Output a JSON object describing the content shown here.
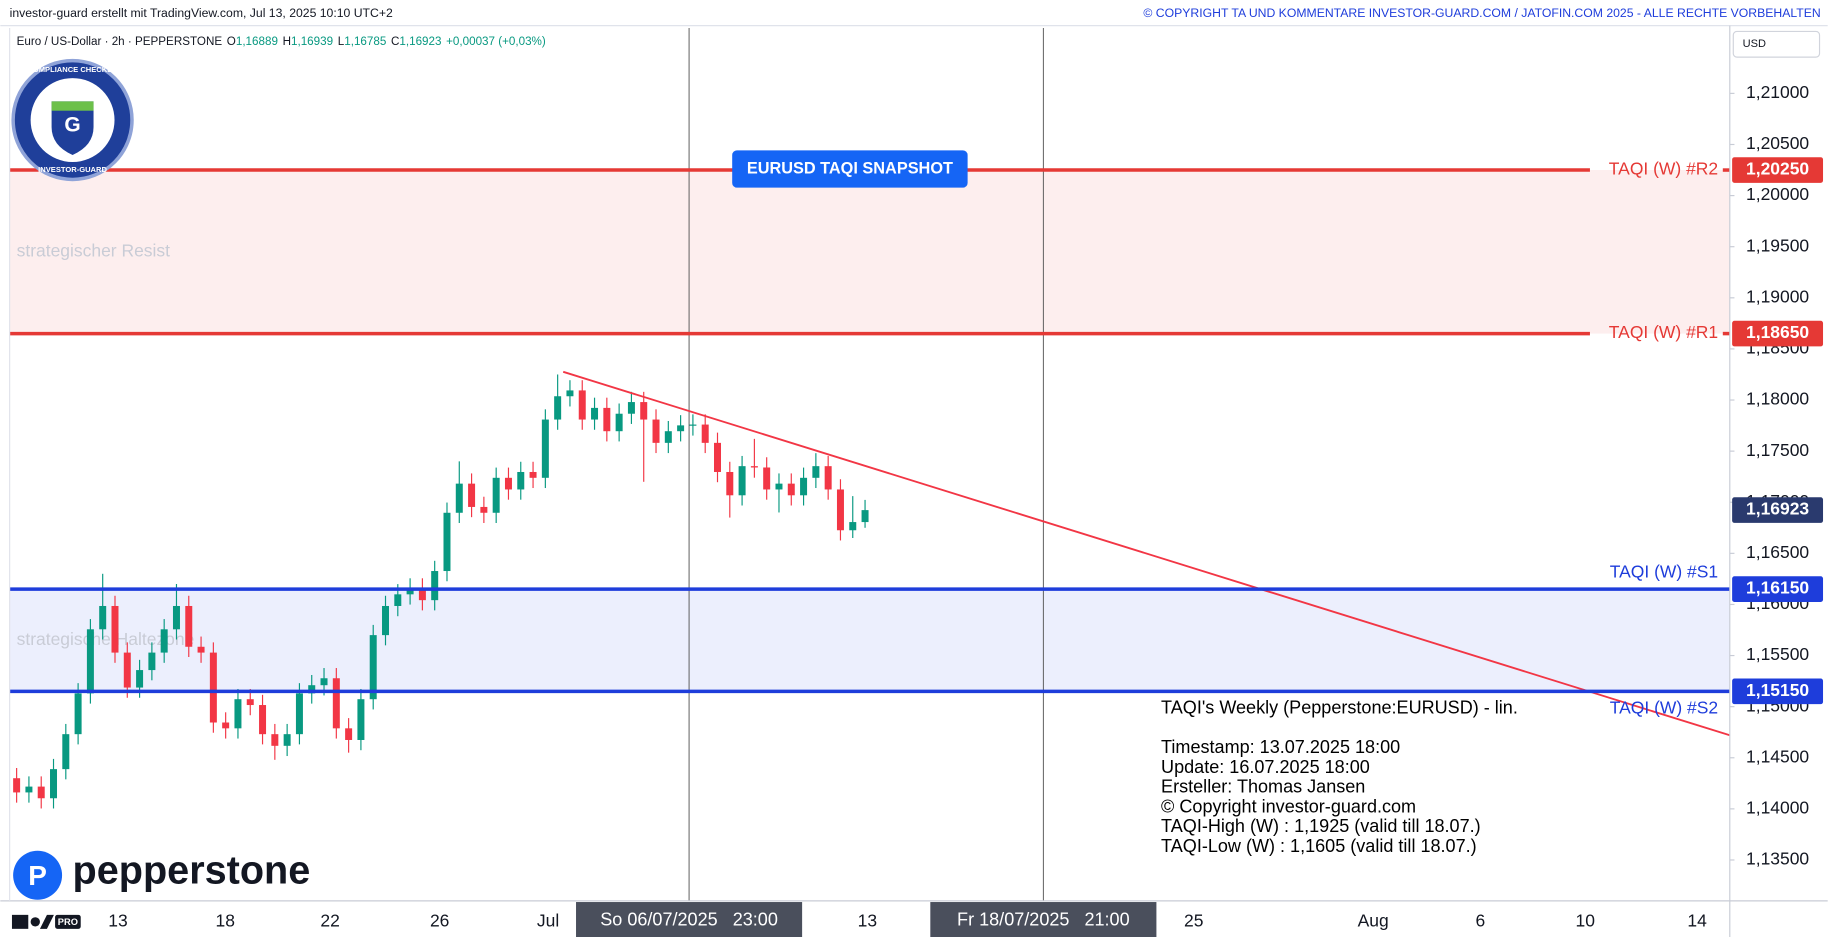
{
  "chart_data": {
    "type": "candlestick",
    "header_left": "investor-guard erstellt mit TradingView.com, Jul 13, 2025 10:10 UTC+2",
    "header_right": "© COPYRIGHT TA UND KOMMENTARE INVESTOR-GUARD.COM / JATOFIN.COM 2025 - ALLE RECHTE VORBEHALTEN",
    "symbol": "Euro / US-Dollar · 2h · PEPPERSTONE",
    "ohlc_legend": [
      {
        "key": "O",
        "value": "1,16889"
      },
      {
        "key": "H",
        "value": "1,16939"
      },
      {
        "key": "L",
        "value": "1,16785"
      },
      {
        "key": "C",
        "value": "1,16923"
      }
    ],
    "change": "+0,00037 (+0,03%)",
    "currency": "USD",
    "badge": {
      "top": "COMPLIANCE CHECKED",
      "bottom": "INVESTOR-GUARD"
    },
    "broker_logo": "pepperstone",
    "snapshot_button": "EURUSD TAQI SNAPSHOT",
    "ylim": [
      1.131,
      1.2164
    ],
    "yticks": [
      {
        "value": 1.135,
        "label": "1,13500"
      },
      {
        "value": 1.14,
        "label": "1,14000"
      },
      {
        "value": 1.145,
        "label": "1,14500"
      },
      {
        "value": 1.15,
        "label": "1,15000"
      },
      {
        "value": 1.155,
        "label": "1,15500"
      },
      {
        "value": 1.16,
        "label": "1,16000"
      },
      {
        "value": 1.165,
        "label": "1,16500"
      },
      {
        "value": 1.17,
        "label": "1,17000"
      },
      {
        "value": 1.175,
        "label": "1,17500"
      },
      {
        "value": 1.18,
        "label": "1,18000"
      },
      {
        "value": 1.185,
        "label": "1,18500"
      },
      {
        "value": 1.19,
        "label": "1,19000"
      },
      {
        "value": 1.195,
        "label": "1,19500"
      },
      {
        "value": 1.2,
        "label": "1,20000"
      },
      {
        "value": 1.205,
        "label": "1,20500"
      },
      {
        "value": 1.21,
        "label": "1,21000"
      }
    ],
    "x_axis_labels": [
      "13",
      "18",
      "22",
      "26",
      "Jul",
      "13",
      "25",
      "Aug",
      "6",
      "10",
      "14"
    ],
    "crosshair_labels": [
      "So 06/07/2025   23:00",
      "Fr 18/07/2025   21:00"
    ],
    "up_color": "#089981",
    "down_color": "#f23645",
    "open": [
      1.143,
      1.14161,
      1.14218,
      1.14104,
      1.14389,
      1.14731,
      1.1513,
      1.15757,
      1.15985,
      1.15529,
      1.15187,
      1.15358,
      1.15529,
      1.15757,
      1.15985,
      1.15586,
      1.15529,
      1.14845,
      1.14788,
      1.15073,
      1.15016,
      1.14731,
      1.14617,
      1.14731,
      1.1513,
      1.1521,
      1.15278,
      1.14788,
      1.14674,
      1.15073,
      1.157,
      1.15985,
      1.16099,
      1.16156,
      1.16042,
      1.16327,
      1.16897,
      1.17182,
      1.16954,
      1.16897,
      1.17239,
      1.17125,
      1.17296,
      1.17239,
      1.17809,
      1.18037,
      1.18094,
      1.17809,
      1.17923,
      1.17695,
      1.17866,
      1.1798,
      1.17809,
      1.17581,
      1.17695,
      1.17752,
      1.1776,
      1.17581,
      1.17296,
      1.17068,
      1.17353,
      1.1734,
      1.17125,
      1.17182,
      1.17068,
      1.17239,
      1.17353,
      1.17125,
      1.16726,
      1.16806
    ],
    "high": [
      1.144,
      1.14318,
      1.14318,
      1.14489,
      1.14831,
      1.1523,
      1.15857,
      1.163,
      1.16085,
      1.15629,
      1.15458,
      1.15629,
      1.15857,
      1.162,
      1.16085,
      1.15686,
      1.15629,
      1.14945,
      1.15173,
      1.15173,
      1.15116,
      1.14831,
      1.14831,
      1.1523,
      1.1531,
      1.15378,
      1.15378,
      1.14888,
      1.15173,
      1.158,
      1.16085,
      1.16199,
      1.16256,
      1.16256,
      1.16427,
      1.16997,
      1.174,
      1.17282,
      1.17054,
      1.17339,
      1.17339,
      1.17396,
      1.17396,
      1.17909,
      1.1825,
      1.18194,
      1.18194,
      1.18023,
      1.18023,
      1.17966,
      1.1808,
      1.1808,
      1.17909,
      1.17795,
      1.17852,
      1.1786,
      1.1786,
      1.17681,
      1.17396,
      1.17453,
      1.1762,
      1.1744,
      1.17282,
      1.17282,
      1.17339,
      1.1748,
      1.17453,
      1.17225,
      1.1706,
      1.17023
    ],
    "low": [
      1.14061,
      1.14061,
      1.14004,
      1.14004,
      1.14289,
      1.14631,
      1.1503,
      1.15657,
      1.15429,
      1.15087,
      1.15087,
      1.15258,
      1.15429,
      1.15657,
      1.15486,
      1.15429,
      1.14745,
      1.14688,
      1.14688,
      1.14916,
      1.14631,
      1.1448,
      1.14517,
      1.14631,
      1.1503,
      1.1511,
      1.14688,
      1.1455,
      1.14574,
      1.14973,
      1.156,
      1.15885,
      1.15999,
      1.15942,
      1.15942,
      1.16227,
      1.16797,
      1.16854,
      1.16797,
      1.16797,
      1.17025,
      1.17025,
      1.17139,
      1.17139,
      1.17709,
      1.17937,
      1.17709,
      1.17709,
      1.17595,
      1.17595,
      1.17766,
      1.172,
      1.17481,
      1.17481,
      1.17595,
      1.17652,
      1.17481,
      1.17196,
      1.1685,
      1.16968,
      1.1724,
      1.17025,
      1.169,
      1.16968,
      1.16968,
      1.17139,
      1.17025,
      1.16626,
      1.1665,
      1.1675
    ],
    "close": [
      1.14161,
      1.14218,
      1.14104,
      1.14389,
      1.14731,
      1.1513,
      1.15757,
      1.15985,
      1.15529,
      1.15187,
      1.15358,
      1.15529,
      1.15757,
      1.15985,
      1.15586,
      1.15529,
      1.14845,
      1.14788,
      1.15073,
      1.15016,
      1.14731,
      1.14617,
      1.14731,
      1.1513,
      1.1521,
      1.15278,
      1.14788,
      1.14674,
      1.15073,
      1.157,
      1.15985,
      1.16099,
      1.16156,
      1.16042,
      1.16327,
      1.16897,
      1.17182,
      1.16954,
      1.16897,
      1.17239,
      1.17125,
      1.17296,
      1.17239,
      1.17809,
      1.18037,
      1.18094,
      1.17809,
      1.17923,
      1.17695,
      1.17866,
      1.1798,
      1.17809,
      1.17581,
      1.17695,
      1.17752,
      1.1776,
      1.17581,
      1.17296,
      1.17068,
      1.17353,
      1.1734,
      1.17125,
      1.17182,
      1.17068,
      1.17239,
      1.17353,
      1.17125,
      1.16726,
      1.16806,
      1.16923
    ],
    "levels": [
      {
        "name": "TAQI (W) #R2",
        "value": 1.2025,
        "value_label": "1,20250",
        "color": "#e53935"
      },
      {
        "name": "TAQI (W) #R1",
        "value": 1.1865,
        "value_label": "1,18650",
        "color": "#e53935"
      },
      {
        "name": "TAQI (W) #S1",
        "value": 1.1615,
        "value_label": "1,16150",
        "color": "#1e3ddb"
      },
      {
        "name": "TAQI (W) #S2",
        "value": 1.1515,
        "value_label": "1,15150",
        "color": "#1e3ddb"
      }
    ],
    "zones": [
      {
        "name": "strategischer Resist",
        "color": "#fdeeee"
      },
      {
        "name": "strategische Haltezone",
        "color": "#eceffd"
      }
    ],
    "last_price": {
      "value": 1.16923,
      "label": "1,16923",
      "color": "#2a3a6e"
    },
    "trendline": {
      "values": [
        1.18276,
        1.1472
      ],
      "color": "#f23645"
    },
    "info_box": [
      "TAQI's Weekly (Pepperstone:EURUSD) - lin.",
      "Timestamp: 13.07.2025 18:00",
      "Update: 16.07.2025 18:00",
      "Ersteller: Thomas Jansen",
      "© Copyright investor-guard.com",
      "TAQI-High (W) : 1,1925 (valid till 18.07.)",
      "TAQI-Low (W) : 1,1605 (valid till 18.07.)"
    ]
  }
}
